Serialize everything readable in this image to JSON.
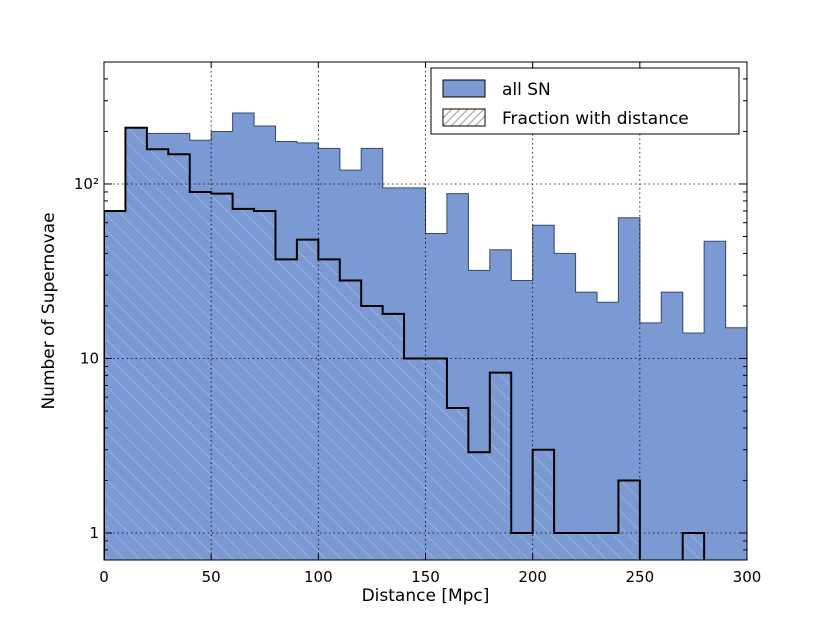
{
  "chart_data": {
    "type": "histogram",
    "xlabel": "Distance [Mpc]",
    "ylabel": "Number of Supernovae",
    "xlim": [
      0,
      300
    ],
    "ylim": [
      0.7,
      500
    ],
    "yscale": "log",
    "grid": true,
    "legend_position": "top-right",
    "x_ticks": [
      0,
      50,
      100,
      150,
      200,
      250,
      300
    ],
    "y_ticks": [
      {
        "value": 1,
        "label": "1"
      },
      {
        "value": 10,
        "label": "10"
      },
      {
        "value": 100,
        "label": "10²"
      }
    ],
    "bin_edges": [
      0,
      10,
      20,
      30,
      40,
      50,
      60,
      70,
      80,
      90,
      100,
      110,
      120,
      130,
      140,
      150,
      160,
      170,
      180,
      190,
      200,
      210,
      220,
      230,
      240,
      250,
      260,
      270,
      280,
      290,
      300
    ],
    "series": [
      {
        "name": "all SN",
        "style": "filled",
        "color": "#7b9ad3",
        "values": [
          70,
          210,
          195,
          195,
          178,
          200,
          255,
          215,
          175,
          172,
          160,
          120,
          160,
          95,
          95,
          52,
          88,
          32,
          42,
          28,
          58,
          40,
          24,
          21,
          64,
          16,
          24,
          14,
          47,
          15
        ]
      },
      {
        "name": "Fraction with distance",
        "style": "hatched",
        "color": "#000000",
        "values": [
          70,
          210,
          158,
          148,
          90,
          88,
          72,
          70,
          37,
          48,
          37,
          28,
          20,
          18,
          10,
          10,
          5.2,
          2.9,
          8.3,
          1,
          3,
          1,
          1,
          1,
          2,
          0,
          0,
          1,
          0,
          0
        ]
      }
    ]
  }
}
